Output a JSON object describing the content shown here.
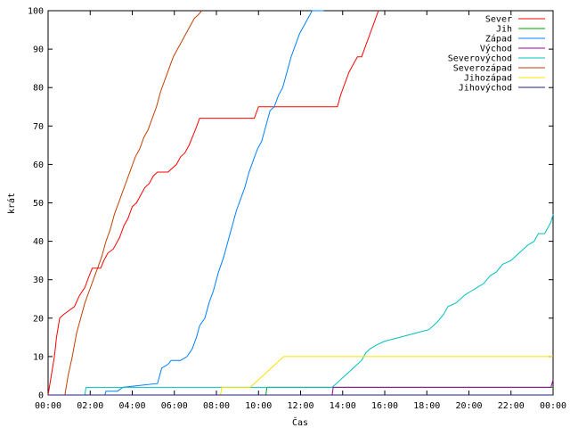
{
  "chart_data": {
    "type": "line",
    "title": "",
    "xlabel": "Čas",
    "ylabel": "krát",
    "xlim": [
      0,
      24
    ],
    "ylim": [
      0,
      100
    ],
    "xticks": [
      0,
      2,
      4,
      6,
      8,
      10,
      12,
      14,
      16,
      18,
      20,
      22,
      24
    ],
    "xtick_labels": [
      "00:00",
      "02:00",
      "04:00",
      "06:00",
      "08:00",
      "10:00",
      "12:00",
      "14:00",
      "16:00",
      "18:00",
      "20:00",
      "22:00",
      "00:00"
    ],
    "yticks": [
      0,
      10,
      20,
      30,
      40,
      50,
      60,
      70,
      80,
      90,
      100
    ],
    "ytick_labels": [
      "0",
      "10",
      "20",
      "30",
      "40",
      "50",
      "60",
      "70",
      "80",
      "90",
      "100"
    ],
    "grid": false,
    "legend_position": "top-right",
    "series": [
      {
        "name": "Sever",
        "color": "#ff0000",
        "x": [
          0.0,
          0.3,
          0.4,
          0.55,
          0.75,
          1.25,
          1.5,
          1.75,
          1.95,
          2.1,
          2.3,
          2.5,
          2.65,
          2.85,
          3.1,
          3.4,
          3.6,
          3.8,
          4.0,
          4.2,
          4.4,
          4.6,
          4.8,
          5.0,
          5.2,
          5.4,
          5.55,
          5.7,
          6.1,
          6.3,
          6.5,
          6.7,
          6.85,
          7.0,
          7.2,
          9.8,
          10.0,
          13.75,
          13.9,
          14.1,
          14.3,
          14.5,
          14.7,
          14.9,
          15.1,
          15.3,
          15.5,
          15.7
        ],
        "y": [
          0,
          10,
          15,
          20,
          21,
          23,
          26,
          28,
          31,
          33,
          33,
          33,
          35,
          37,
          38,
          41,
          44,
          46,
          49,
          50,
          52,
          54,
          55,
          57,
          58,
          58,
          58,
          58,
          60,
          62,
          63,
          65,
          67,
          69,
          72,
          72,
          75,
          75,
          78,
          81,
          84,
          86,
          88,
          88,
          91,
          94,
          97,
          100
        ]
      },
      {
        "name": "Jih",
        "color": "#00a000",
        "x": [
          0,
          10.35,
          10.4,
          24.0
        ],
        "y": [
          0,
          0,
          2,
          2
        ]
      },
      {
        "name": "Západ",
        "color": "#0080ff",
        "x": [
          0,
          2.7,
          2.75,
          3.3,
          3.55,
          5.2,
          5.4,
          5.7,
          5.85,
          6.3,
          6.6,
          6.85,
          7.05,
          7.2,
          7.45,
          7.65,
          7.85,
          8.1,
          8.35,
          8.55,
          8.75,
          8.95,
          9.15,
          9.35,
          9.55,
          9.75,
          9.95,
          10.15,
          10.35,
          10.55,
          10.75,
          10.95,
          11.15,
          11.35,
          11.55,
          11.75,
          11.95,
          12.15,
          12.35,
          12.55,
          12.75,
          12.95,
          13.1
        ],
        "y": [
          0,
          0,
          1,
          1,
          2,
          3,
          7,
          8,
          9,
          9,
          10,
          12,
          15,
          18,
          20,
          24,
          27,
          32,
          36,
          40,
          44,
          48,
          51,
          54,
          58,
          61,
          64,
          66,
          70,
          74,
          75,
          78,
          80,
          84,
          88,
          91,
          94,
          96,
          98,
          100,
          100,
          100,
          100
        ]
      },
      {
        "name": "Východ",
        "color": "#a000a0",
        "x": [
          0,
          13.5,
          13.55,
          23.9,
          24.0
        ],
        "y": [
          0,
          0,
          2,
          2,
          4
        ]
      },
      {
        "name": "Severovýchod",
        "color": "#00c0c0",
        "x": [
          0,
          1.75,
          1.8,
          13.5,
          13.7,
          13.9,
          14.1,
          14.3,
          14.5,
          14.7,
          14.9,
          15.1,
          15.3,
          15.6,
          16.0,
          16.7,
          17.4,
          18.1,
          18.5,
          18.8,
          19.0,
          19.4,
          19.8,
          20.1,
          20.4,
          20.7,
          21.0,
          21.3,
          21.6,
          22.0,
          22.4,
          22.8,
          23.1,
          23.3,
          23.6,
          23.9,
          24.0
        ],
        "y": [
          0,
          0,
          2,
          2,
          3,
          4,
          5,
          6,
          7,
          8,
          9,
          11,
          12,
          13,
          14,
          15,
          16,
          17,
          19,
          21,
          23,
          24,
          26,
          27,
          28,
          29,
          31,
          32,
          34,
          35,
          37,
          39,
          40,
          42,
          42,
          45,
          47
        ]
      },
      {
        "name": "Severozápad",
        "color": "#c04000",
        "x": [
          0,
          0.8,
          0.95,
          1.15,
          1.35,
          1.55,
          1.75,
          1.95,
          2.15,
          2.35,
          2.55,
          2.75,
          2.95,
          3.15,
          3.35,
          3.55,
          3.75,
          3.95,
          4.15,
          4.35,
          4.55,
          4.75,
          4.95,
          5.15,
          5.35,
          5.55,
          5.75,
          5.95,
          6.15,
          6.35,
          6.55,
          6.75,
          6.95,
          7.15,
          7.3
        ],
        "y": [
          0,
          0,
          5,
          10,
          16,
          20,
          24,
          27,
          30,
          33,
          36,
          40,
          43,
          47,
          50,
          53,
          56,
          59,
          62,
          64,
          67,
          69,
          72,
          75,
          79,
          82,
          85,
          88,
          90,
          92,
          94,
          96,
          98,
          99,
          100
        ]
      },
      {
        "name": "Jihozápad",
        "color": "#ffe000",
        "x": [
          0,
          8.2,
          8.25,
          9.6,
          9.8,
          10.0,
          10.2,
          10.4,
          10.6,
          10.8,
          11.0,
          11.2,
          24.0
        ],
        "y": [
          0,
          0,
          2,
          2,
          3,
          4,
          5,
          6,
          7,
          8,
          9,
          10,
          10
        ]
      },
      {
        "name": "Jihovýchod",
        "color": "#202080",
        "x": [
          0,
          24.0
        ],
        "y": [
          0,
          0
        ]
      }
    ]
  }
}
